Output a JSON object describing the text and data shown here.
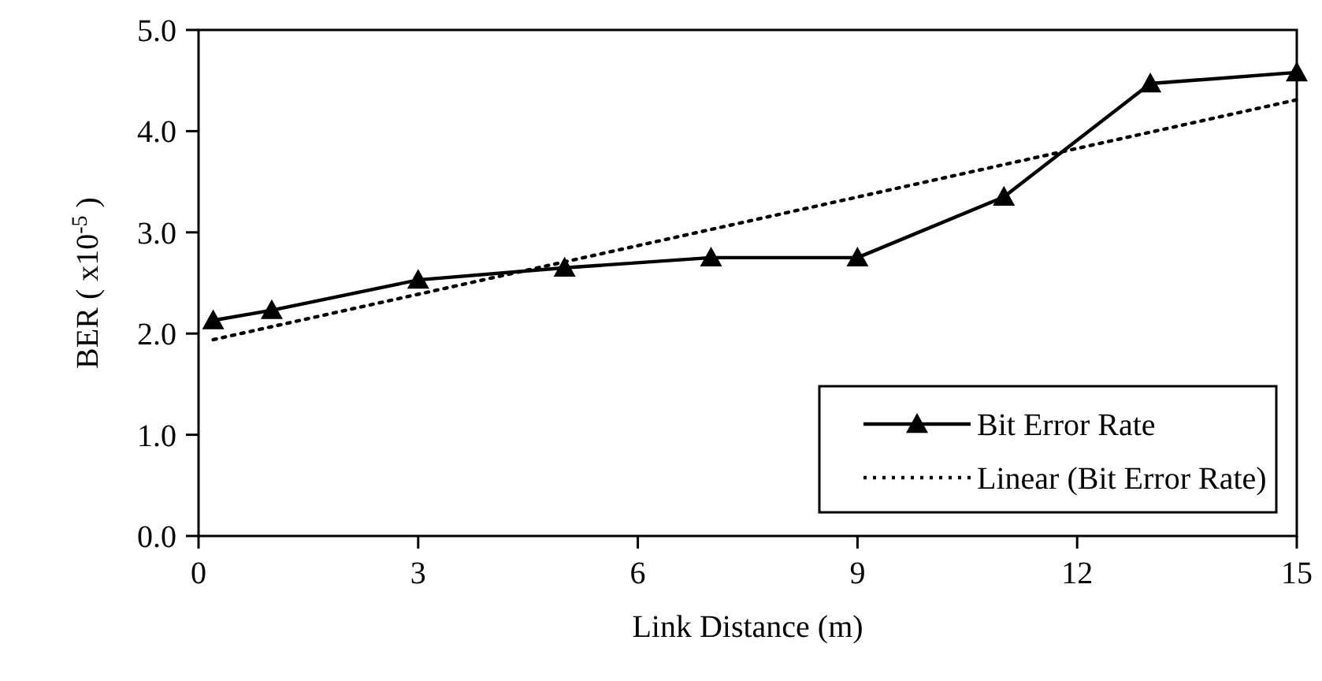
{
  "chart_data": {
    "type": "line",
    "xlabel": "Link Distance (m)",
    "ylabel": "BER ( x10$^{-5}$ )",
    "xlim": [
      0,
      15
    ],
    "xticks": [
      0,
      3,
      6,
      9,
      12,
      15
    ],
    "ylim": [
      0,
      5
    ],
    "yticks": [
      {
        "value": 0,
        "label": "0.0"
      },
      {
        "value": 1,
        "label": "1.0"
      },
      {
        "value": 2,
        "label": "2.0"
      },
      {
        "value": 3,
        "label": "3.0"
      },
      {
        "value": 4,
        "label": "4.0"
      },
      {
        "value": 5,
        "label": "5.0"
      }
    ],
    "grid": false,
    "legend": "bottom right",
    "series": [
      {
        "name": "Bit Error Rate",
        "color": "#000000",
        "marker": "triangle",
        "line_style": "solid",
        "x": [
          0.2,
          1,
          3,
          5,
          7,
          9,
          11,
          13,
          15
        ],
        "values": [
          2.13,
          2.23,
          2.53,
          2.65,
          2.75,
          2.75,
          3.35,
          4.47,
          4.58
        ]
      },
      {
        "name": "Linear (Bit Error Rate)",
        "color": "#000000",
        "marker": "none",
        "line_style": "dotted",
        "x": [
          0.2,
          15
        ],
        "values": [
          1.94,
          4.31
        ]
      }
    ]
  }
}
